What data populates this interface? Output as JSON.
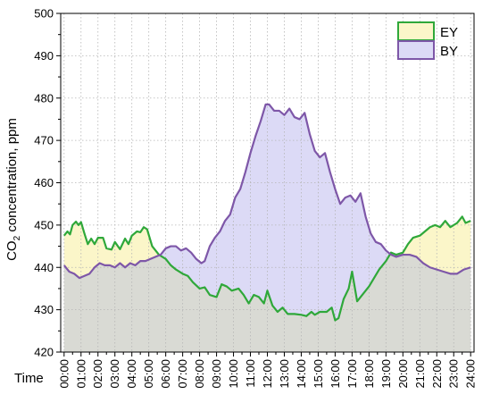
{
  "chart_data": {
    "type": "area",
    "xlabel": "Time",
    "ylabel_main": "CO",
    "ylabel_sub": "2",
    "ylabel_rest": " concentration, ppm",
    "ylim": [
      420,
      500
    ],
    "xlim": [
      -0.2,
      24.2
    ],
    "grid": true,
    "legend_position": "top-right",
    "y_ticks": [
      "420",
      "430",
      "440",
      "450",
      "460",
      "470",
      "480",
      "490",
      "500"
    ],
    "x_ticks": [
      "00:00",
      "01:00",
      "02:00",
      "03:00",
      "04:00",
      "05:00",
      "06:00",
      "07:00",
      "08:00",
      "09:00",
      "10:00",
      "11:00",
      "12:00",
      "13:00",
      "14:00",
      "15:00",
      "16:00",
      "17:00",
      "18:00",
      "19:00",
      "20:00",
      "21:00",
      "22:00",
      "23:00",
      "24:00"
    ],
    "series": [
      {
        "name": "EY",
        "line_color": "#2fa83a",
        "fill_color": "#fbf6c9",
        "points": [
          [
            0,
            447.5
          ],
          [
            0.2,
            448.5
          ],
          [
            0.35,
            447.8
          ],
          [
            0.5,
            450
          ],
          [
            0.7,
            450.8
          ],
          [
            0.85,
            450
          ],
          [
            1.0,
            450.7
          ],
          [
            1.2,
            448
          ],
          [
            1.4,
            445.5
          ],
          [
            1.6,
            446.8
          ],
          [
            1.8,
            445.5
          ],
          [
            2.0,
            447
          ],
          [
            2.3,
            447
          ],
          [
            2.5,
            444.5
          ],
          [
            2.8,
            444.2
          ],
          [
            3.0,
            446
          ],
          [
            3.3,
            444.3
          ],
          [
            3.6,
            446.8
          ],
          [
            3.8,
            445.5
          ],
          [
            4.0,
            447.5
          ],
          [
            4.3,
            448.5
          ],
          [
            4.5,
            448.3
          ],
          [
            4.7,
            449.5
          ],
          [
            4.9,
            449
          ],
          [
            5.2,
            445
          ],
          [
            5.6,
            443
          ],
          [
            6.0,
            442
          ],
          [
            6.3,
            440.5
          ],
          [
            6.6,
            439.5
          ],
          [
            7.0,
            438.5
          ],
          [
            7.3,
            438
          ],
          [
            7.6,
            436.5
          ],
          [
            8.0,
            435
          ],
          [
            8.3,
            435.3
          ],
          [
            8.6,
            433.5
          ],
          [
            9.0,
            433
          ],
          [
            9.3,
            436
          ],
          [
            9.6,
            435.5
          ],
          [
            9.9,
            434.5
          ],
          [
            10.3,
            435
          ],
          [
            10.6,
            433.5
          ],
          [
            10.9,
            431.5
          ],
          [
            11.2,
            433.5
          ],
          [
            11.5,
            433
          ],
          [
            11.8,
            431.5
          ],
          [
            12.0,
            434.5
          ],
          [
            12.3,
            431
          ],
          [
            12.6,
            429.5
          ],
          [
            12.9,
            430.5
          ],
          [
            13.2,
            429
          ],
          [
            13.6,
            429
          ],
          [
            14.0,
            428.8
          ],
          [
            14.3,
            428.5
          ],
          [
            14.6,
            429.5
          ],
          [
            14.8,
            428.8
          ],
          [
            15.1,
            429.5
          ],
          [
            15.5,
            429.5
          ],
          [
            15.8,
            430.5
          ],
          [
            16.0,
            427.5
          ],
          [
            16.2,
            428
          ],
          [
            16.5,
            432.5
          ],
          [
            16.8,
            435
          ],
          [
            17.0,
            439
          ],
          [
            17.3,
            432
          ],
          [
            17.6,
            433.5
          ],
          [
            18.0,
            435.5
          ],
          [
            18.3,
            437.5
          ],
          [
            18.6,
            439.5
          ],
          [
            19.0,
            441.5
          ],
          [
            19.3,
            443.5
          ],
          [
            19.6,
            443
          ],
          [
            20.0,
            443.5
          ],
          [
            20.3,
            445.5
          ],
          [
            20.6,
            447
          ],
          [
            21.0,
            447.5
          ],
          [
            21.3,
            448.5
          ],
          [
            21.6,
            449.5
          ],
          [
            21.9,
            450
          ],
          [
            22.2,
            449.5
          ],
          [
            22.5,
            451
          ],
          [
            22.8,
            449.5
          ],
          [
            23.2,
            450.5
          ],
          [
            23.5,
            452
          ],
          [
            23.7,
            450.5
          ],
          [
            24.0,
            451
          ]
        ]
      },
      {
        "name": "BY",
        "line_color": "#7e57a8",
        "fill_color": "#dcdaf6",
        "points": [
          [
            0,
            440.5
          ],
          [
            0.3,
            439
          ],
          [
            0.6,
            438.5
          ],
          [
            0.9,
            437.5
          ],
          [
            1.2,
            438
          ],
          [
            1.5,
            438.5
          ],
          [
            1.8,
            440
          ],
          [
            2.1,
            441
          ],
          [
            2.4,
            440.5
          ],
          [
            2.7,
            440.5
          ],
          [
            3.0,
            440
          ],
          [
            3.3,
            441
          ],
          [
            3.6,
            440
          ],
          [
            3.9,
            441
          ],
          [
            4.2,
            440.5
          ],
          [
            4.5,
            441.5
          ],
          [
            4.8,
            441.5
          ],
          [
            5.1,
            442
          ],
          [
            5.4,
            442.5
          ],
          [
            5.7,
            443
          ],
          [
            6.0,
            444.5
          ],
          [
            6.3,
            445
          ],
          [
            6.6,
            445
          ],
          [
            6.9,
            444
          ],
          [
            7.2,
            444.5
          ],
          [
            7.5,
            443.5
          ],
          [
            7.8,
            442
          ],
          [
            8.1,
            441
          ],
          [
            8.3,
            441.5
          ],
          [
            8.6,
            445
          ],
          [
            8.9,
            447
          ],
          [
            9.2,
            448.5
          ],
          [
            9.5,
            451
          ],
          [
            9.8,
            452.5
          ],
          [
            10.1,
            456.5
          ],
          [
            10.4,
            458.5
          ],
          [
            10.7,
            462.5
          ],
          [
            11.0,
            467
          ],
          [
            11.3,
            471
          ],
          [
            11.6,
            474.5
          ],
          [
            11.9,
            478.5
          ],
          [
            12.1,
            478.5
          ],
          [
            12.4,
            477
          ],
          [
            12.7,
            477
          ],
          [
            13.0,
            476
          ],
          [
            13.3,
            477.5
          ],
          [
            13.6,
            475.5
          ],
          [
            13.9,
            475
          ],
          [
            14.2,
            476.5
          ],
          [
            14.5,
            471.5
          ],
          [
            14.8,
            467.5
          ],
          [
            15.1,
            466
          ],
          [
            15.4,
            467
          ],
          [
            15.7,
            462.5
          ],
          [
            16.0,
            458.5
          ],
          [
            16.3,
            455
          ],
          [
            16.6,
            456.5
          ],
          [
            16.9,
            457
          ],
          [
            17.2,
            455.5
          ],
          [
            17.5,
            457.5
          ],
          [
            17.8,
            452
          ],
          [
            18.1,
            448
          ],
          [
            18.4,
            446
          ],
          [
            18.7,
            445.5
          ],
          [
            19.0,
            444
          ],
          [
            19.3,
            443
          ],
          [
            19.6,
            442.5
          ],
          [
            20.0,
            443
          ],
          [
            20.4,
            443
          ],
          [
            20.8,
            442.5
          ],
          [
            21.2,
            441
          ],
          [
            21.6,
            440
          ],
          [
            22.0,
            439.5
          ],
          [
            22.4,
            439
          ],
          [
            22.8,
            438.5
          ],
          [
            23.2,
            438.5
          ],
          [
            23.6,
            439.5
          ],
          [
            24.0,
            440
          ]
        ]
      }
    ]
  }
}
